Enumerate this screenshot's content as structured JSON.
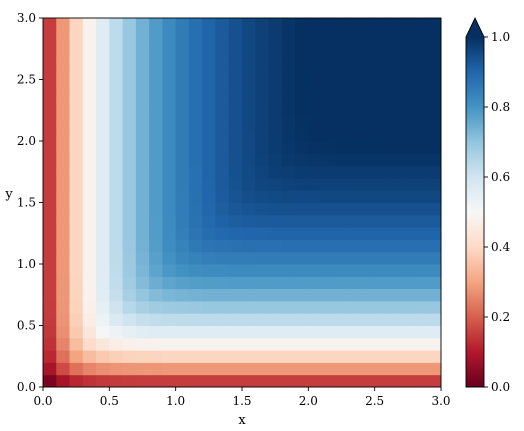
{
  "chart_data": {
    "type": "heatmap",
    "title": "",
    "xlabel": "x",
    "ylabel": "y",
    "xlim": [
      0.0,
      3.0
    ],
    "ylim": [
      0.0,
      3.0
    ],
    "x_ticks": [
      "0.0",
      "0.5",
      "1.0",
      "1.5",
      "2.0",
      "2.5",
      "3.0"
    ],
    "y_ticks": [
      "0.0",
      "0.5",
      "1.0",
      "1.5",
      "2.0",
      "2.5",
      "3.0"
    ],
    "grid_size": [
      30,
      30
    ],
    "colormap": "RdBu",
    "colorbar": {
      "range": [
        0.0,
        1.0
      ],
      "ticks": [
        "0.0",
        "0.2",
        "0.4",
        "0.6",
        "0.8",
        "1.0"
      ],
      "extend": "max",
      "placement": "right"
    },
    "field_description": "values near 0 along x=0 and y=0 edges, rising to ~0.5 around an L-shaped contour near x≈0.9 and y≈1.0, and approaching 1.0 toward the upper-right corner",
    "anchor_values": [
      {
        "x": 0.05,
        "y": 0.05,
        "value": 0.0
      },
      {
        "x": 0.05,
        "y": 2.95,
        "value": 0.08
      },
      {
        "x": 2.95,
        "y": 0.05,
        "value": 0.08
      },
      {
        "x": 0.85,
        "y": 2.5,
        "value": 0.5
      },
      {
        "x": 2.5,
        "y": 1.0,
        "value": 0.5
      },
      {
        "x": 1.5,
        "y": 2.0,
        "value": 0.78
      },
      {
        "x": 2.5,
        "y": 1.7,
        "value": 0.82
      },
      {
        "x": 2.95,
        "y": 2.95,
        "value": 1.0
      }
    ],
    "colors": {
      "low": "#67001f",
      "mid": "#f7f7f7",
      "high": "#053061"
    }
  }
}
